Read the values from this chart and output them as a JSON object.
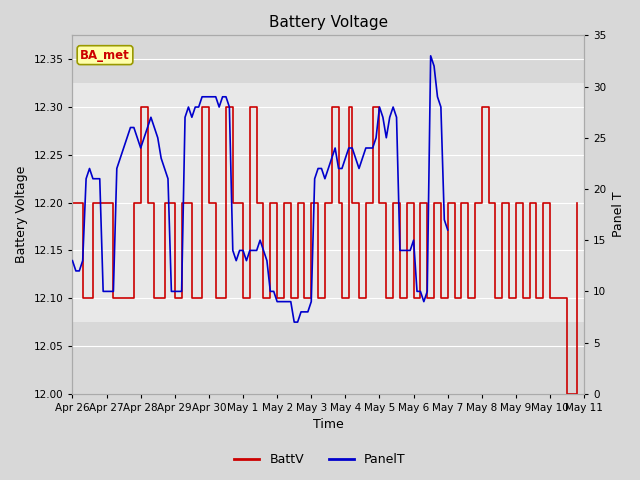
{
  "title": "Battery Voltage",
  "xlabel": "Time",
  "ylabel_left": "Battery Voltage",
  "ylabel_right": "Panel T",
  "annotation_text": "BA_met",
  "ylim_left": [
    12.0,
    12.375
  ],
  "ylim_right": [
    0,
    35
  ],
  "yticks_left": [
    12.0,
    12.05,
    12.1,
    12.15,
    12.2,
    12.25,
    12.3,
    12.35
  ],
  "yticks_right": [
    0,
    5,
    10,
    15,
    20,
    25,
    30,
    35
  ],
  "fig_bg_color": "#d8d8d8",
  "plot_bg_color": "#d8d8d8",
  "inner_span_color": "#e8e8e8",
  "inner_span_lo": 12.075,
  "inner_span_hi": 12.325,
  "batt_color": "#cc0000",
  "panel_color": "#0000cc",
  "legend_batt": "BattV",
  "legend_panel": "PanelT",
  "x_tick_labels": [
    "Apr 26",
    "Apr 27",
    "Apr 28",
    "Apr 29",
    "Apr 30",
    "May 1",
    "May 2",
    "May 3",
    "May 4",
    "May 5",
    "May 6",
    "May 7",
    "May 8",
    "May 9",
    "May 10",
    "May 11"
  ],
  "xlim": [
    0,
    15
  ],
  "x_tick_pos": [
    0,
    1,
    2,
    3,
    4,
    5,
    6,
    7,
    8,
    9,
    10,
    11,
    12,
    13,
    14,
    15
  ],
  "batt_steps": [
    [
      0.0,
      12.2
    ],
    [
      0.3,
      12.1
    ],
    [
      0.6,
      12.2
    ],
    [
      0.9,
      12.2
    ],
    [
      1.2,
      12.1
    ],
    [
      1.5,
      12.1
    ],
    [
      1.8,
      12.2
    ],
    [
      2.0,
      12.3
    ],
    [
      2.2,
      12.2
    ],
    [
      2.4,
      12.1
    ],
    [
      2.7,
      12.2
    ],
    [
      3.0,
      12.1
    ],
    [
      3.2,
      12.2
    ],
    [
      3.5,
      12.1
    ],
    [
      3.8,
      12.3
    ],
    [
      4.0,
      12.2
    ],
    [
      4.2,
      12.1
    ],
    [
      4.5,
      12.3
    ],
    [
      4.7,
      12.2
    ],
    [
      5.0,
      12.1
    ],
    [
      5.2,
      12.3
    ],
    [
      5.4,
      12.2
    ],
    [
      5.6,
      12.1
    ],
    [
      5.8,
      12.2
    ],
    [
      6.0,
      12.1
    ],
    [
      6.2,
      12.2
    ],
    [
      6.4,
      12.1
    ],
    [
      6.6,
      12.2
    ],
    [
      6.8,
      12.1
    ],
    [
      7.0,
      12.2
    ],
    [
      7.2,
      12.1
    ],
    [
      7.4,
      12.2
    ],
    [
      7.6,
      12.3
    ],
    [
      7.8,
      12.2
    ],
    [
      7.9,
      12.1
    ],
    [
      8.1,
      12.3
    ],
    [
      8.2,
      12.2
    ],
    [
      8.4,
      12.1
    ],
    [
      8.6,
      12.2
    ],
    [
      8.8,
      12.3
    ],
    [
      9.0,
      12.2
    ],
    [
      9.2,
      12.1
    ],
    [
      9.4,
      12.2
    ],
    [
      9.6,
      12.1
    ],
    [
      9.8,
      12.2
    ],
    [
      10.0,
      12.1
    ],
    [
      10.2,
      12.2
    ],
    [
      10.4,
      12.1
    ],
    [
      10.6,
      12.2
    ],
    [
      10.8,
      12.1
    ],
    [
      11.0,
      12.2
    ],
    [
      11.2,
      12.1
    ],
    [
      11.4,
      12.2
    ],
    [
      11.6,
      12.1
    ],
    [
      11.8,
      12.2
    ],
    [
      12.0,
      12.3
    ],
    [
      12.2,
      12.2
    ],
    [
      12.4,
      12.1
    ],
    [
      12.6,
      12.2
    ],
    [
      12.8,
      12.1
    ],
    [
      13.0,
      12.2
    ],
    [
      13.2,
      12.1
    ],
    [
      13.4,
      12.2
    ],
    [
      13.6,
      12.1
    ],
    [
      13.8,
      12.2
    ],
    [
      14.0,
      12.1
    ],
    [
      14.5,
      12.0
    ],
    [
      14.8,
      12.2
    ]
  ],
  "panel_data": [
    [
      0.0,
      13
    ],
    [
      0.1,
      12
    ],
    [
      0.2,
      12
    ],
    [
      0.3,
      13
    ],
    [
      0.4,
      21
    ],
    [
      0.5,
      22
    ],
    [
      0.6,
      21
    ],
    [
      0.7,
      21
    ],
    [
      0.8,
      21
    ],
    [
      0.9,
      10
    ],
    [
      1.0,
      10
    ],
    [
      1.1,
      10
    ],
    [
      1.2,
      10
    ],
    [
      1.3,
      22
    ],
    [
      1.4,
      23
    ],
    [
      1.5,
      24
    ],
    [
      1.6,
      25
    ],
    [
      1.7,
      26
    ],
    [
      1.8,
      26
    ],
    [
      1.9,
      25
    ],
    [
      2.0,
      24
    ],
    [
      2.1,
      25
    ],
    [
      2.2,
      26
    ],
    [
      2.3,
      27
    ],
    [
      2.4,
      26
    ],
    [
      2.5,
      25
    ],
    [
      2.6,
      23
    ],
    [
      2.7,
      22
    ],
    [
      2.8,
      21
    ],
    [
      2.9,
      10
    ],
    [
      3.0,
      10
    ],
    [
      3.1,
      10
    ],
    [
      3.2,
      10
    ],
    [
      3.3,
      27
    ],
    [
      3.4,
      28
    ],
    [
      3.5,
      27
    ],
    [
      3.6,
      28
    ],
    [
      3.7,
      28
    ],
    [
      3.8,
      29
    ],
    [
      3.9,
      29
    ],
    [
      4.0,
      29
    ],
    [
      4.1,
      29
    ],
    [
      4.2,
      29
    ],
    [
      4.3,
      28
    ],
    [
      4.4,
      29
    ],
    [
      4.5,
      29
    ],
    [
      4.6,
      28
    ],
    [
      4.7,
      14
    ],
    [
      4.8,
      13
    ],
    [
      4.9,
      14
    ],
    [
      5.0,
      14
    ],
    [
      5.1,
      13
    ],
    [
      5.2,
      14
    ],
    [
      5.3,
      14
    ],
    [
      5.4,
      14
    ],
    [
      5.5,
      15
    ],
    [
      5.6,
      14
    ],
    [
      5.7,
      13
    ],
    [
      5.8,
      10
    ],
    [
      5.9,
      10
    ],
    [
      6.0,
      9
    ],
    [
      6.1,
      9
    ],
    [
      6.2,
      9
    ],
    [
      6.3,
      9
    ],
    [
      6.4,
      9
    ],
    [
      6.5,
      7
    ],
    [
      6.6,
      7
    ],
    [
      6.7,
      8
    ],
    [
      6.8,
      8
    ],
    [
      6.9,
      8
    ],
    [
      7.0,
      9
    ],
    [
      7.1,
      21
    ],
    [
      7.2,
      22
    ],
    [
      7.3,
      22
    ],
    [
      7.4,
      21
    ],
    [
      7.5,
      22
    ],
    [
      7.6,
      23
    ],
    [
      7.7,
      24
    ],
    [
      7.8,
      22
    ],
    [
      7.9,
      22
    ],
    [
      8.0,
      23
    ],
    [
      8.1,
      24
    ],
    [
      8.2,
      24
    ],
    [
      8.3,
      23
    ],
    [
      8.4,
      22
    ],
    [
      8.5,
      23
    ],
    [
      8.6,
      24
    ],
    [
      8.7,
      24
    ],
    [
      8.8,
      24
    ],
    [
      8.9,
      25
    ],
    [
      9.0,
      28
    ],
    [
      9.1,
      27
    ],
    [
      9.2,
      25
    ],
    [
      9.3,
      27
    ],
    [
      9.4,
      28
    ],
    [
      9.5,
      27
    ],
    [
      9.6,
      14
    ],
    [
      9.7,
      14
    ],
    [
      9.8,
      14
    ],
    [
      9.9,
      14
    ],
    [
      10.0,
      15
    ],
    [
      10.1,
      10
    ],
    [
      10.2,
      10
    ],
    [
      10.3,
      9
    ],
    [
      10.4,
      10
    ],
    [
      10.5,
      33
    ],
    [
      10.6,
      32
    ],
    [
      10.7,
      29
    ],
    [
      10.8,
      28
    ],
    [
      10.9,
      17
    ],
    [
      11.0,
      16
    ]
  ]
}
